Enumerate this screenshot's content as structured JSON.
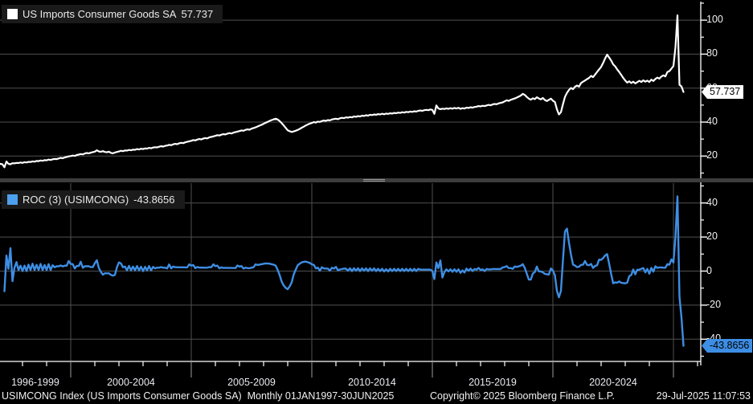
{
  "window": {
    "app": "Bloomberg chart",
    "background": "#000000"
  },
  "colors": {
    "background": "#000000",
    "series1_line": "#ffffff",
    "series2_line": "#3e8ee4",
    "series2_swatch": "#4da0f0",
    "gridline": "#4f4f4f",
    "section_divider": "#8a8a8a",
    "axis": "#ffffff",
    "legend_bg": "#1a1a1a",
    "tag1_bg": "#ffffff",
    "tag2_bg": "#3e8ee4",
    "tag_text": "#000000",
    "label_text": "#f0f0f0"
  },
  "panel1": {
    "legend": {
      "swatch": "white-square",
      "label": "US Imports Consumer Goods SA",
      "value": "57.737"
    },
    "last_value_label": "57.737",
    "axis_tick_labels": [
      "100",
      "80",
      "60",
      "40",
      "20"
    ]
  },
  "panel2": {
    "legend": {
      "swatch": "blue-square",
      "label": "ROC (3) (USIMCONG)",
      "value": "-43.8656"
    },
    "last_value_label": "-43.8656",
    "axis_tick_labels": [
      "40",
      "20",
      "0",
      "-20",
      "-40"
    ]
  },
  "x_axis": {
    "sections": [
      "1996-1999",
      "2000-2004",
      "2005-2009",
      "2010-2014",
      "2015-2019",
      "2020-2024"
    ]
  },
  "footer": {
    "left": "USIMCONG Index (US Imports Consumer Goods SA)  Monthly 01JAN1997-30JUN2025",
    "copyright": "Copyright© 2025 Bloomberg Finance L.P.",
    "datetime": "29-Jul-2025 11:07:53"
  },
  "chart_data": [
    {
      "type": "line",
      "title": "US Imports Consumer Goods SA",
      "name": "USIMCONG Index",
      "frequency": "monthly",
      "start": "1997-01",
      "end": "2025-06",
      "line_color": "#ffffff",
      "ylim": [
        8,
        112
      ],
      "gridlines": [
        20,
        40,
        60,
        80,
        100
      ],
      "legend_position": "top-left",
      "last_value": 57.737,
      "values_by_year": {
        "1997": [
          15.2,
          15.4,
          15.2,
          13.4,
          16.8,
          15.4,
          15.2,
          15.8,
          15.7,
          16.0,
          15.9,
          16.2
        ],
        "1998": [
          16.0,
          16.4,
          16.2,
          16.6,
          16.5,
          16.9,
          16.7,
          17.1,
          17.0,
          17.4,
          17.2,
          17.6
        ],
        "1999": [
          17.5,
          17.9,
          17.7,
          18.1,
          18.3,
          18.2,
          18.6,
          18.9,
          18.7,
          19.2,
          19.5,
          19.8
        ],
        "2000": [
          20.0,
          20.3,
          20.1,
          20.6,
          20.9,
          21.2,
          21.0,
          21.5,
          21.8,
          21.6,
          22.0,
          22.3
        ],
        "2001": [
          22.6,
          23.4,
          22.7,
          22.5,
          22.9,
          22.4,
          22.2,
          22.6,
          21.9,
          21.6,
          22.1,
          22.4
        ],
        "2002": [
          22.7,
          23.1,
          22.9,
          23.3,
          23.2,
          23.6,
          23.4,
          23.8,
          23.7,
          24.1,
          23.9,
          24.3
        ],
        "2003": [
          24.1,
          24.5,
          24.4,
          24.8,
          24.6,
          25.0,
          25.2,
          25.1,
          25.5,
          25.8,
          25.6,
          26.0
        ],
        "2004": [
          26.2,
          26.6,
          26.4,
          26.9,
          27.2,
          27.0,
          27.5,
          27.8,
          27.6,
          28.1,
          28.4,
          28.7
        ],
        "2005": [
          29.0,
          29.4,
          29.2,
          29.7,
          30.0,
          29.8,
          30.3,
          30.6,
          30.4,
          31.0,
          31.3,
          31.6
        ],
        "2006": [
          31.9,
          32.3,
          32.1,
          32.6,
          32.9,
          32.7,
          33.2,
          33.5,
          33.3,
          33.8,
          34.1,
          34.4
        ],
        "2007": [
          34.7,
          35.1,
          34.9,
          35.4,
          35.7,
          35.5,
          36.1,
          36.5,
          36.9,
          37.4,
          37.9,
          38.4
        ],
        "2008": [
          39.0,
          39.6,
          40.1,
          40.7,
          41.2,
          41.6,
          42.0,
          41.5,
          40.6,
          39.4,
          38.0,
          36.6
        ],
        "2009": [
          35.2,
          34.6,
          34.2,
          34.5,
          34.9,
          35.4,
          36.0,
          36.7,
          37.3,
          38.0,
          38.6,
          39.1
        ],
        "2010": [
          39.5,
          40.0,
          39.7,
          40.3,
          40.1,
          40.6,
          40.9,
          40.7,
          41.2,
          41.0,
          41.5,
          41.8
        ],
        "2011": [
          42.0,
          41.7,
          42.2,
          42.5,
          42.3,
          42.8,
          42.6,
          43.0,
          42.8,
          43.3,
          43.1,
          43.5
        ],
        "2012": [
          43.3,
          43.8,
          43.6,
          44.0,
          43.8,
          44.3,
          44.1,
          44.5,
          44.3,
          44.7,
          44.5,
          44.9
        ],
        "2013": [
          44.6,
          45.0,
          44.8,
          45.2,
          45.0,
          45.4,
          45.2,
          45.6,
          45.4,
          45.8,
          45.6,
          46.0
        ],
        "2014": [
          45.8,
          46.2,
          46.0,
          46.4,
          46.2,
          46.6,
          46.8,
          46.6,
          47.0,
          47.2,
          47.0,
          47.4
        ],
        "2015": [
          47.2,
          44.8,
          49.8,
          48.0,
          47.6,
          47.9,
          47.7,
          48.1,
          47.8,
          48.2,
          47.9,
          48.3
        ],
        "2016": [
          48.0,
          48.4,
          47.8,
          48.2,
          48.0,
          48.5,
          48.3,
          48.7,
          48.5,
          48.9,
          49.1,
          49.4
        ],
        "2017": [
          49.2,
          49.6,
          49.4,
          49.8,
          50.1,
          49.9,
          50.4,
          50.7,
          50.5,
          51.0,
          51.3,
          51.6
        ],
        "2018": [
          52.2,
          52.8,
          52.5,
          53.1,
          53.5,
          53.9,
          54.4,
          55.0,
          55.6,
          56.6,
          56.0,
          54.8
        ],
        "2019": [
          53.8,
          53.2,
          54.0,
          53.5,
          54.6,
          53.9,
          53.4,
          54.2,
          53.0,
          52.4,
          53.1,
          53.8
        ],
        "2020": [
          52.6,
          51.8,
          47.5,
          44.5,
          45.8,
          50.5,
          54.8,
          57.2,
          58.9,
          60.1,
          59.4,
          60.8
        ],
        "2021": [
          61.5,
          60.9,
          63.0,
          63.8,
          64.5,
          65.3,
          66.0,
          67.2,
          66.5,
          68.0,
          69.5,
          71.0
        ],
        "2022": [
          72.5,
          74.8,
          77.5,
          79.7,
          78.0,
          76.2,
          74.0,
          72.8,
          71.0,
          69.5,
          67.8,
          66.0
        ],
        "2023": [
          64.5,
          63.2,
          64.0,
          63.0,
          63.8,
          62.8,
          63.5,
          64.3,
          63.6,
          64.6,
          63.8,
          64.4
        ],
        "2024": [
          63.6,
          65.0,
          64.2,
          65.4,
          66.2,
          65.6,
          66.8,
          67.5,
          66.9,
          69.5,
          70.0,
          71.5
        ],
        "2025": [
          73.0,
          84.0,
          102.855,
          62.0,
          61.0,
          57.737
        ]
      }
    },
    {
      "type": "line",
      "title": "ROC (3) (USIMCONG)",
      "name": "3-month rate of change, %",
      "derived_from": "series 0",
      "formula": "roc[i] = (v[i]/v[i-3] - 1) * 100, plotted from 1997-04",
      "line_color": "#3e8ee4",
      "ylim": [
        -52,
        52
      ],
      "gridlines": [
        -40,
        -20,
        0,
        20,
        40
      ],
      "vertical_gridlines_at_years": [
        2000,
        2005,
        2010,
        2015,
        2020,
        2025
      ],
      "legend_position": "top-left",
      "last_value": -43.8656,
      "peak_value_2025_03": 43.85,
      "covid_spike_2020_07": 23.1,
      "covid_dip_2020_04": -15.4
    }
  ]
}
